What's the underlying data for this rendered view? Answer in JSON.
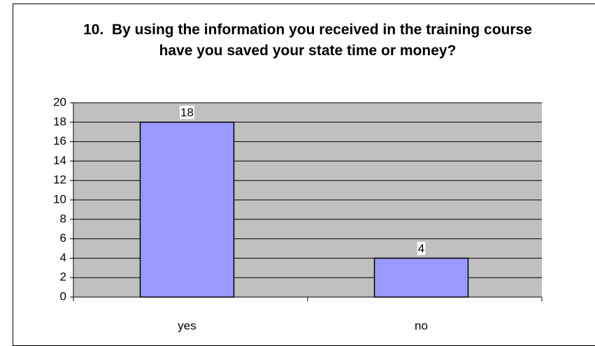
{
  "chart_data": {
    "type": "bar",
    "title": "10.  By using the information you received in the training course have you saved your state time or money?",
    "categories": [
      "yes",
      "no"
    ],
    "values": [
      18,
      4
    ],
    "color": "#9999ff",
    "ylim": [
      0,
      20
    ],
    "yticks": [
      0,
      2,
      4,
      6,
      8,
      10,
      12,
      14,
      16,
      18,
      20
    ],
    "grid": true
  }
}
